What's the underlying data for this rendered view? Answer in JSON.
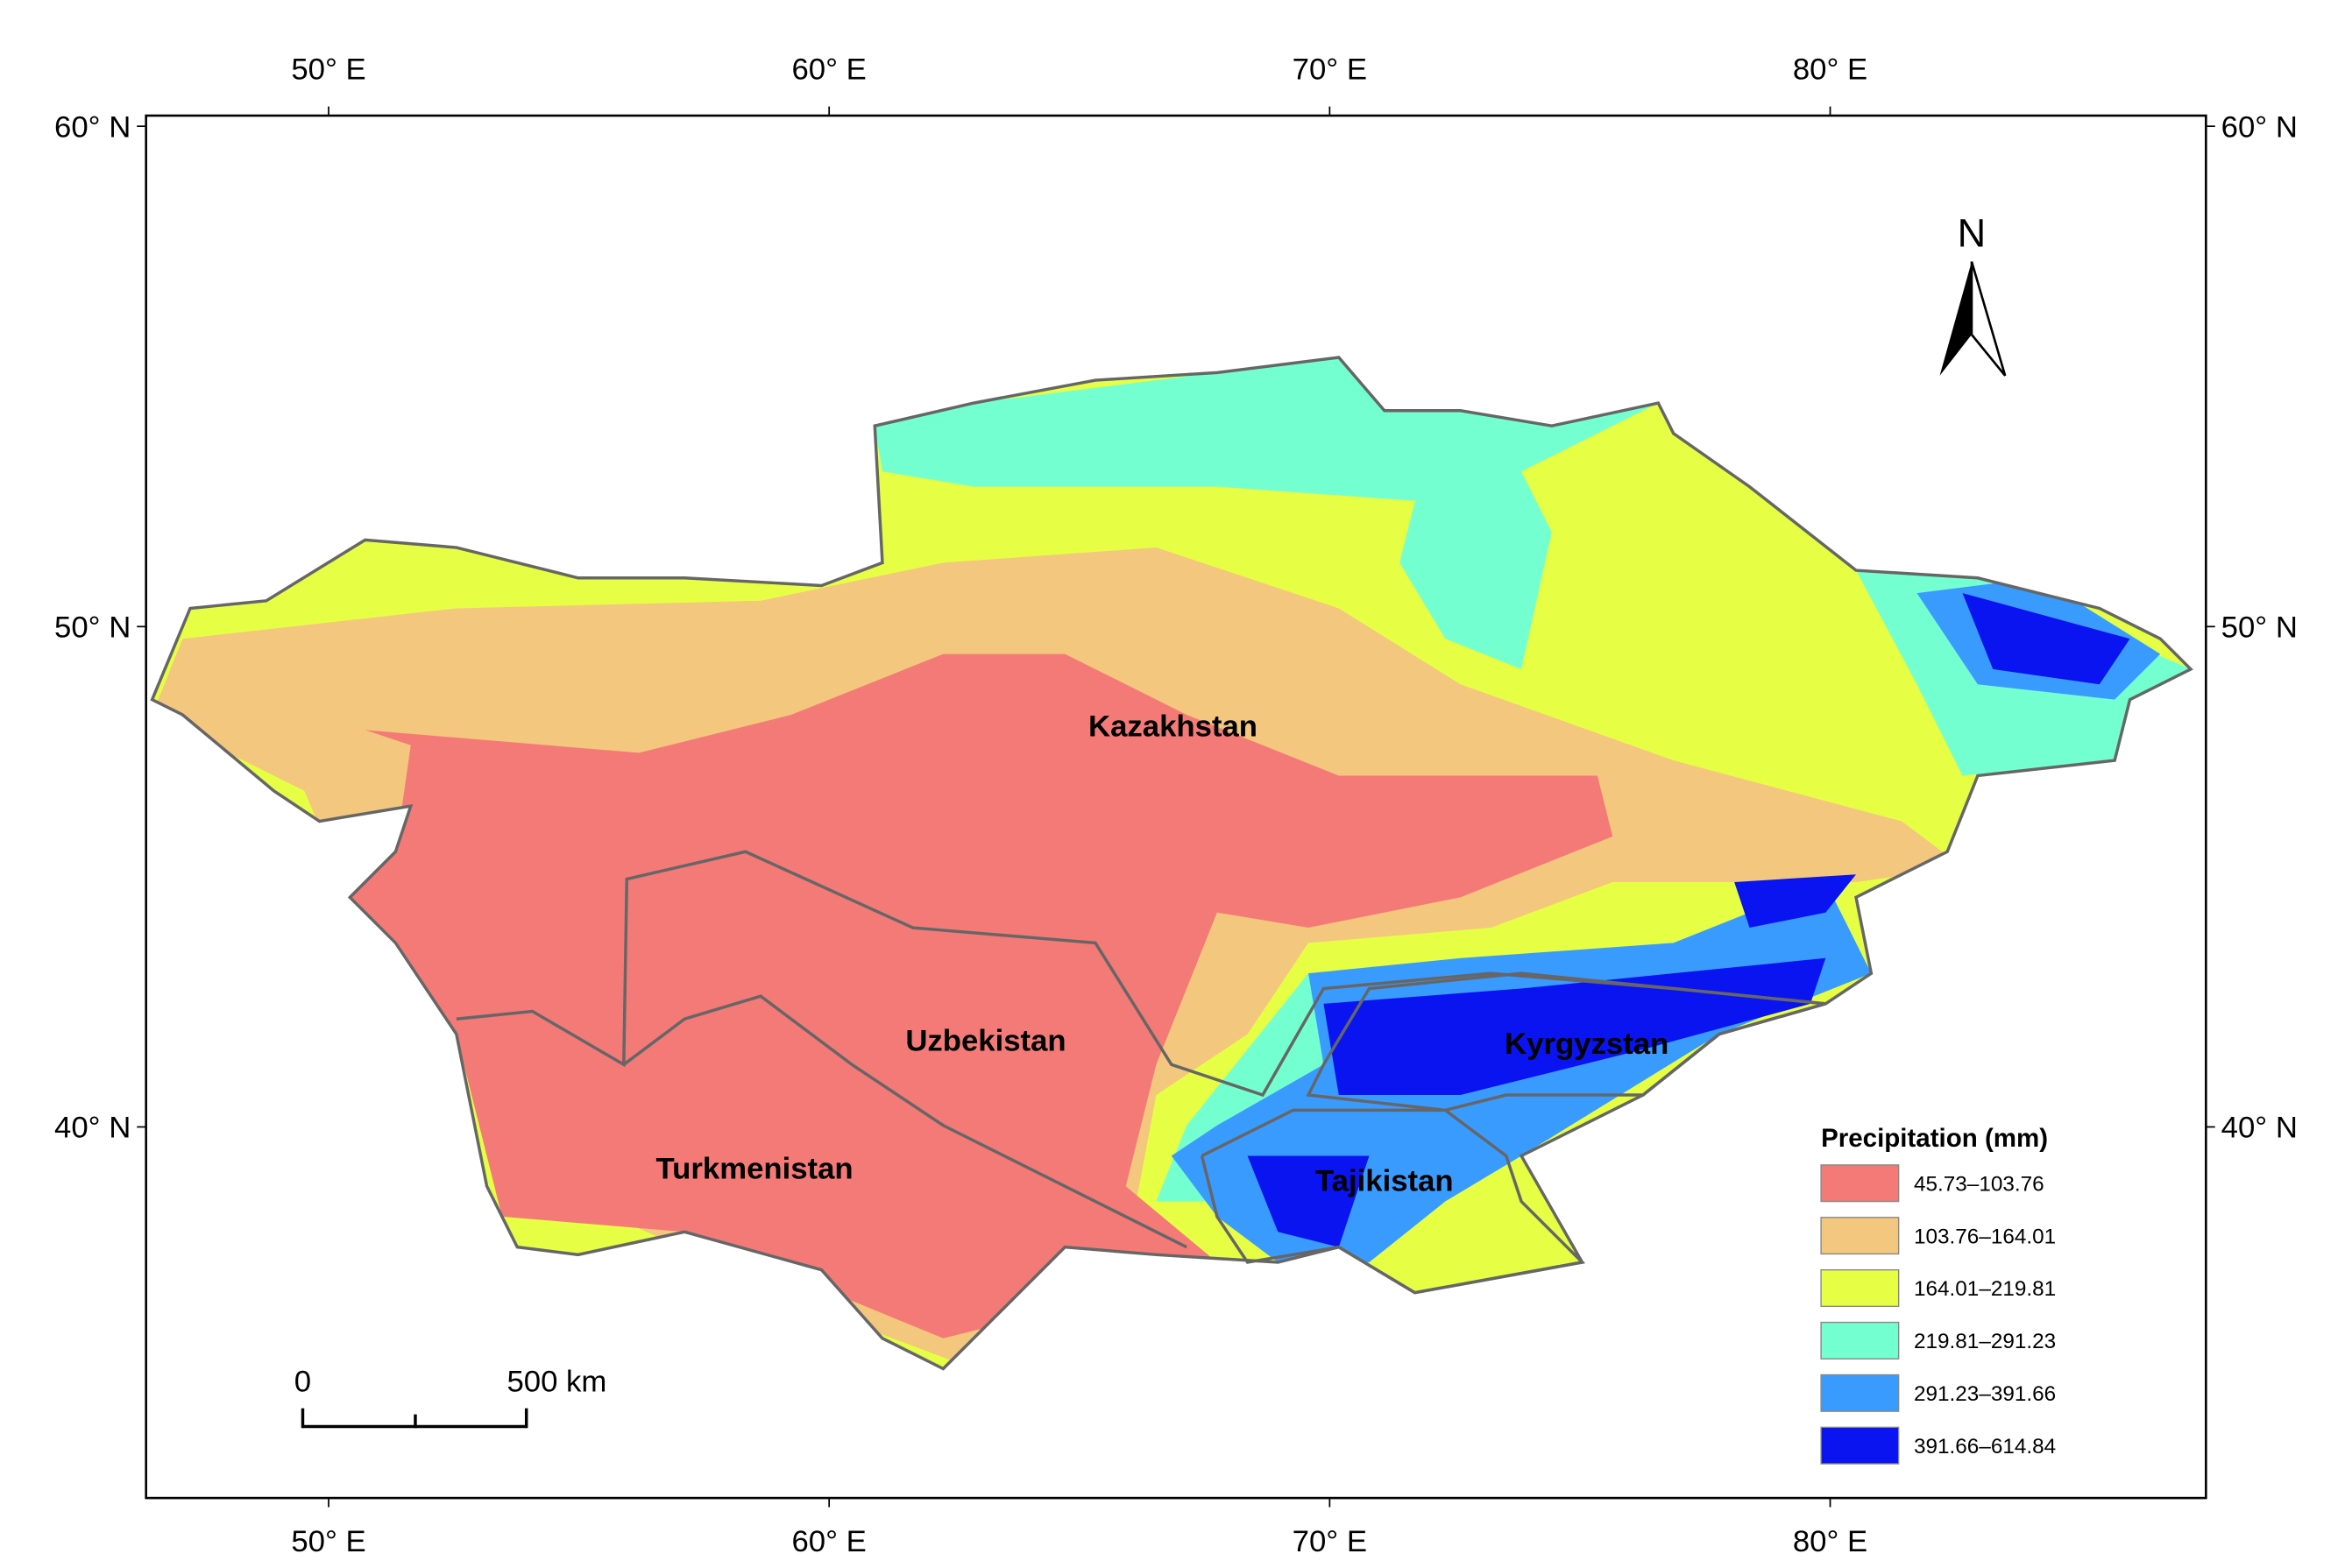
{
  "map": {
    "lon_labels": [
      "50° E",
      "60° E",
      "70° E",
      "80° E"
    ],
    "lat_labels": [
      "60° N",
      "50° N",
      "40° N"
    ],
    "countries": [
      "Kazakhstan",
      "Uzbekistan",
      "Turkmenistan",
      "Kyrgyzstan",
      "Tajikistan"
    ],
    "north_label": "N",
    "scale_bar": {
      "start": "0",
      "end": "500 km"
    },
    "legend": {
      "title": "Precipitation (mm)",
      "classes": [
        {
          "label": "45.73–103.76",
          "color": "#f47a77"
        },
        {
          "label": "103.76–164.01",
          "color": "#f3c77e"
        },
        {
          "label": "164.01–219.81",
          "color": "#e6ff44"
        },
        {
          "label": "219.81–291.23",
          "color": "#74ffd1"
        },
        {
          "label": "291.23–391.66",
          "color": "#3a9bff"
        },
        {
          "label": "391.66–614.84",
          "color": "#0a14f0"
        }
      ]
    }
  }
}
